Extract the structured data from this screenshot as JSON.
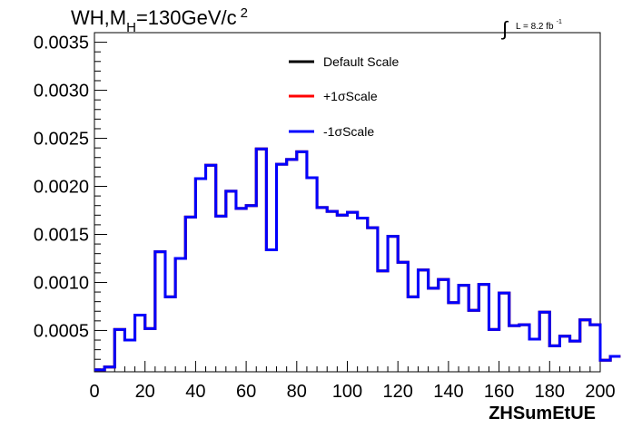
{
  "title": {
    "main": "WH,M",
    "sub": "H",
    "rest": "=130GeV/c",
    "sup": "2"
  },
  "lumi": {
    "integral": "∫",
    "text": "L = 8.2 fb",
    "sup": "-1"
  },
  "chart_data": {
    "type": "line",
    "drawstyle": "step",
    "xlabel": "ZHSumEtUE",
    "ylabel": "",
    "xlim": [
      0,
      200
    ],
    "ylim": [
      7e-05,
      0.0036
    ],
    "xticks": [
      0,
      20,
      40,
      60,
      80,
      100,
      120,
      140,
      160,
      180,
      200
    ],
    "yticks": [
      0.0005,
      0.001,
      0.0015,
      0.002,
      0.0025,
      0.003,
      0.0035
    ],
    "ytick_labels": [
      "0.0005",
      "0.0010",
      "0.0015",
      "0.0020",
      "0.0025",
      "0.0030",
      "0.0035"
    ],
    "xtick_labels": [
      "0",
      "20",
      "40",
      "60",
      "80",
      "100",
      "120",
      "140",
      "160",
      "180",
      "200"
    ],
    "bin_width": 4,
    "bin_edges_start": 0,
    "legend_position": "top-center",
    "series": [
      {
        "name": "Default Scale",
        "color": "#000000",
        "values": [
          9e-05,
          0.00012,
          0.00051,
          0.0004,
          0.00066,
          0.00052,
          0.00132,
          0.00085,
          0.00125,
          0.00168,
          0.00208,
          0.00222,
          0.00169,
          0.00195,
          0.00177,
          0.0018,
          0.00239,
          0.00134,
          0.00223,
          0.00228,
          0.00236,
          0.00209,
          0.00178,
          0.00174,
          0.0017,
          0.00173,
          0.00167,
          0.00157,
          0.00112,
          0.00148,
          0.00121,
          0.00085,
          0.00113,
          0.00094,
          0.00103,
          0.00079,
          0.00097,
          0.00071,
          0.00098,
          0.00051,
          0.00089,
          0.00055,
          0.00056,
          0.00041,
          0.00069,
          0.00034,
          0.00044,
          0.00039,
          0.00061,
          0.00056,
          0.00019,
          0.00023
        ]
      },
      {
        "name": "+1σScale",
        "color": "#ff0000",
        "values": [
          9e-05,
          0.00012,
          0.00051,
          0.0004,
          0.00066,
          0.00052,
          0.00132,
          0.00085,
          0.00125,
          0.00168,
          0.00208,
          0.00222,
          0.00169,
          0.00195,
          0.00177,
          0.0018,
          0.00239,
          0.00134,
          0.00223,
          0.00228,
          0.00236,
          0.00209,
          0.00178,
          0.00174,
          0.0017,
          0.00173,
          0.00167,
          0.00157,
          0.00112,
          0.00148,
          0.00121,
          0.00085,
          0.00113,
          0.00094,
          0.00103,
          0.00079,
          0.00097,
          0.00071,
          0.00098,
          0.00051,
          0.00089,
          0.00055,
          0.00056,
          0.00041,
          0.00069,
          0.00034,
          0.00044,
          0.00039,
          0.00061,
          0.00056,
          0.00019,
          0.00023
        ]
      },
      {
        "name": "-1σScale",
        "color": "#0000ff",
        "values": [
          9e-05,
          0.00012,
          0.00051,
          0.0004,
          0.00066,
          0.00052,
          0.00132,
          0.00085,
          0.00125,
          0.00168,
          0.00208,
          0.00222,
          0.00169,
          0.00195,
          0.00177,
          0.0018,
          0.00239,
          0.00134,
          0.00223,
          0.00228,
          0.00236,
          0.00209,
          0.00178,
          0.00174,
          0.0017,
          0.00173,
          0.00167,
          0.00157,
          0.00112,
          0.00148,
          0.00121,
          0.00085,
          0.00113,
          0.00094,
          0.00103,
          0.00079,
          0.00097,
          0.00071,
          0.00098,
          0.00051,
          0.00089,
          0.00055,
          0.00056,
          0.00041,
          0.00069,
          0.00034,
          0.00044,
          0.00039,
          0.00061,
          0.00056,
          0.00019,
          0.00023
        ]
      }
    ]
  }
}
